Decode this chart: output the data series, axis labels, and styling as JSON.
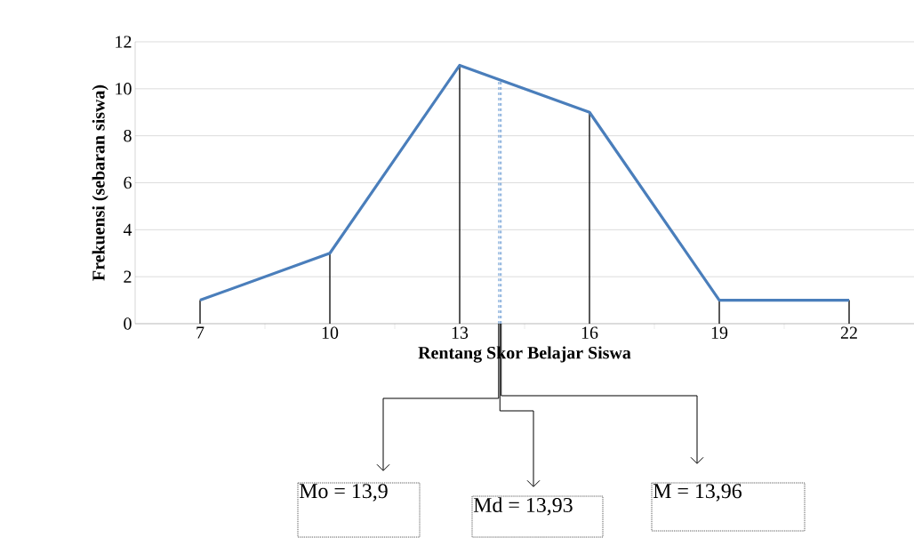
{
  "chart_data": {
    "type": "line",
    "xlabel": "Rentang Skor Belajar Siswa",
    "ylabel": "Frekuensi (sebaran siswa)",
    "x": [
      7,
      10,
      13,
      16,
      19,
      22
    ],
    "series": [
      {
        "color": "#4a7ebb",
        "values": [
          1,
          3,
          11,
          9,
          1,
          1
        ]
      },
      {
        "type": "bar",
        "color": "#000000",
        "values": [
          1,
          3,
          11,
          9,
          1,
          1
        ]
      }
    ],
    "xlim": [
      5.5,
      23.5
    ],
    "xticks": [
      7,
      {
        "value": 8.5,
        "label": null
      },
      10,
      {
        "value": 11.5,
        "label": null
      },
      13,
      {
        "value": 14.5,
        "label": null
      },
      16,
      {
        "value": 17.5,
        "label": null
      },
      19,
      {
        "value": 20.5,
        "label": null
      },
      22
    ],
    "ylim": [
      0,
      12
    ],
    "yticks": [
      0,
      2,
      4,
      6,
      8,
      10,
      12
    ],
    "grid": "y",
    "marker": "none",
    "ref_lines": [
      {
        "axis": "x",
        "value": 13.9,
        "label": "Mo = 13,9",
        "color": "#7aa6d8",
        "line_style": "dashed"
      },
      {
        "axis": "x",
        "value": 13.93,
        "label": "Md = 13,93",
        "color": "#7aa6d8",
        "line_style": "dashed"
      },
      {
        "axis": "x",
        "value": 13.96,
        "label": "M = 13,96",
        "color": "#7aa6d8",
        "line_style": "dashed"
      }
    ]
  }
}
